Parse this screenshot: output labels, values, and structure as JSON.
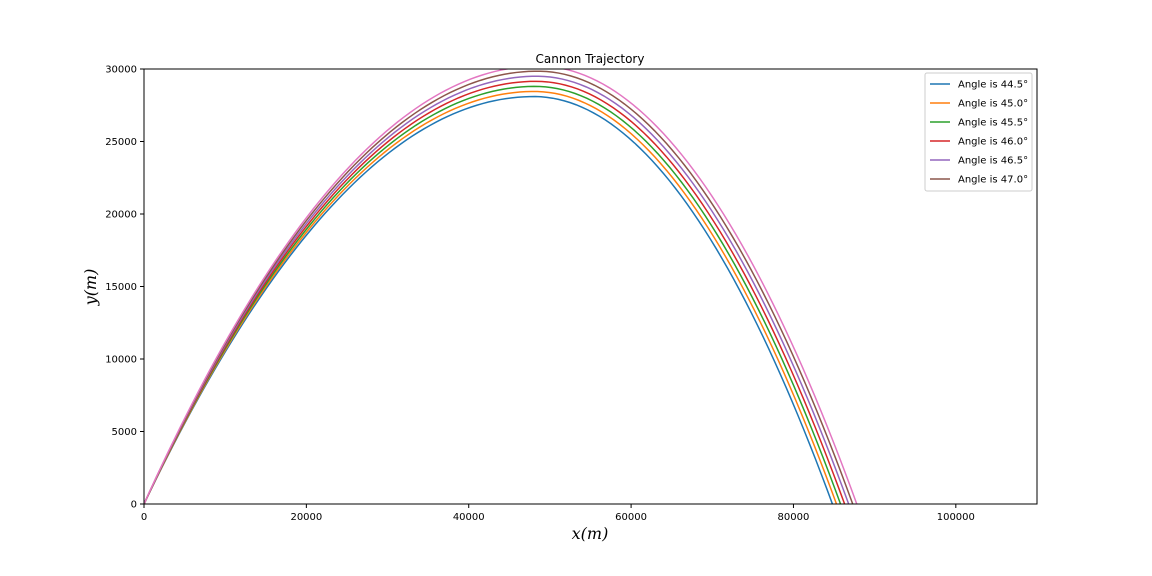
{
  "chart_data": {
    "type": "line",
    "title": "Cannon Trajectory",
    "xlabel": "x(m)",
    "ylabel": "y(m)",
    "xlim": [
      0,
      110000
    ],
    "ylim": [
      0,
      30000
    ],
    "x_ticks": [
      0,
      20000,
      40000,
      60000,
      80000,
      100000
    ],
    "y_ticks": [
      0,
      5000,
      10000,
      15000,
      20000,
      25000,
      30000
    ],
    "grid": false,
    "legend_position": "top-right",
    "series": [
      {
        "name": "Angle is 44.5°",
        "color": "#1f77b4",
        "apex_x": 48000,
        "apex_y": 28100,
        "range_x": 84800
      },
      {
        "name": "Angle is 45.0°",
        "color": "#ff7f0e",
        "apex_x": 48100,
        "apex_y": 28450,
        "range_x": 85300
      },
      {
        "name": "Angle is 45.5°",
        "color": "#2ca02c",
        "apex_x": 48200,
        "apex_y": 28800,
        "range_x": 85800
      },
      {
        "name": "Angle is 46.0°",
        "color": "#d62728",
        "apex_x": 48300,
        "apex_y": 29150,
        "range_x": 86300
      },
      {
        "name": "Angle is 46.5°",
        "color": "#9467bd",
        "apex_x": 48400,
        "apex_y": 29500,
        "range_x": 86800
      },
      {
        "name": "Angle is 47.0°",
        "color": "#8c564b",
        "apex_x": 48500,
        "apex_y": 29850,
        "range_x": 87300
      },
      {
        "color": "#e377c2",
        "apex_x": 48600,
        "apex_y": 30200,
        "range_x": 87800
      }
    ]
  }
}
